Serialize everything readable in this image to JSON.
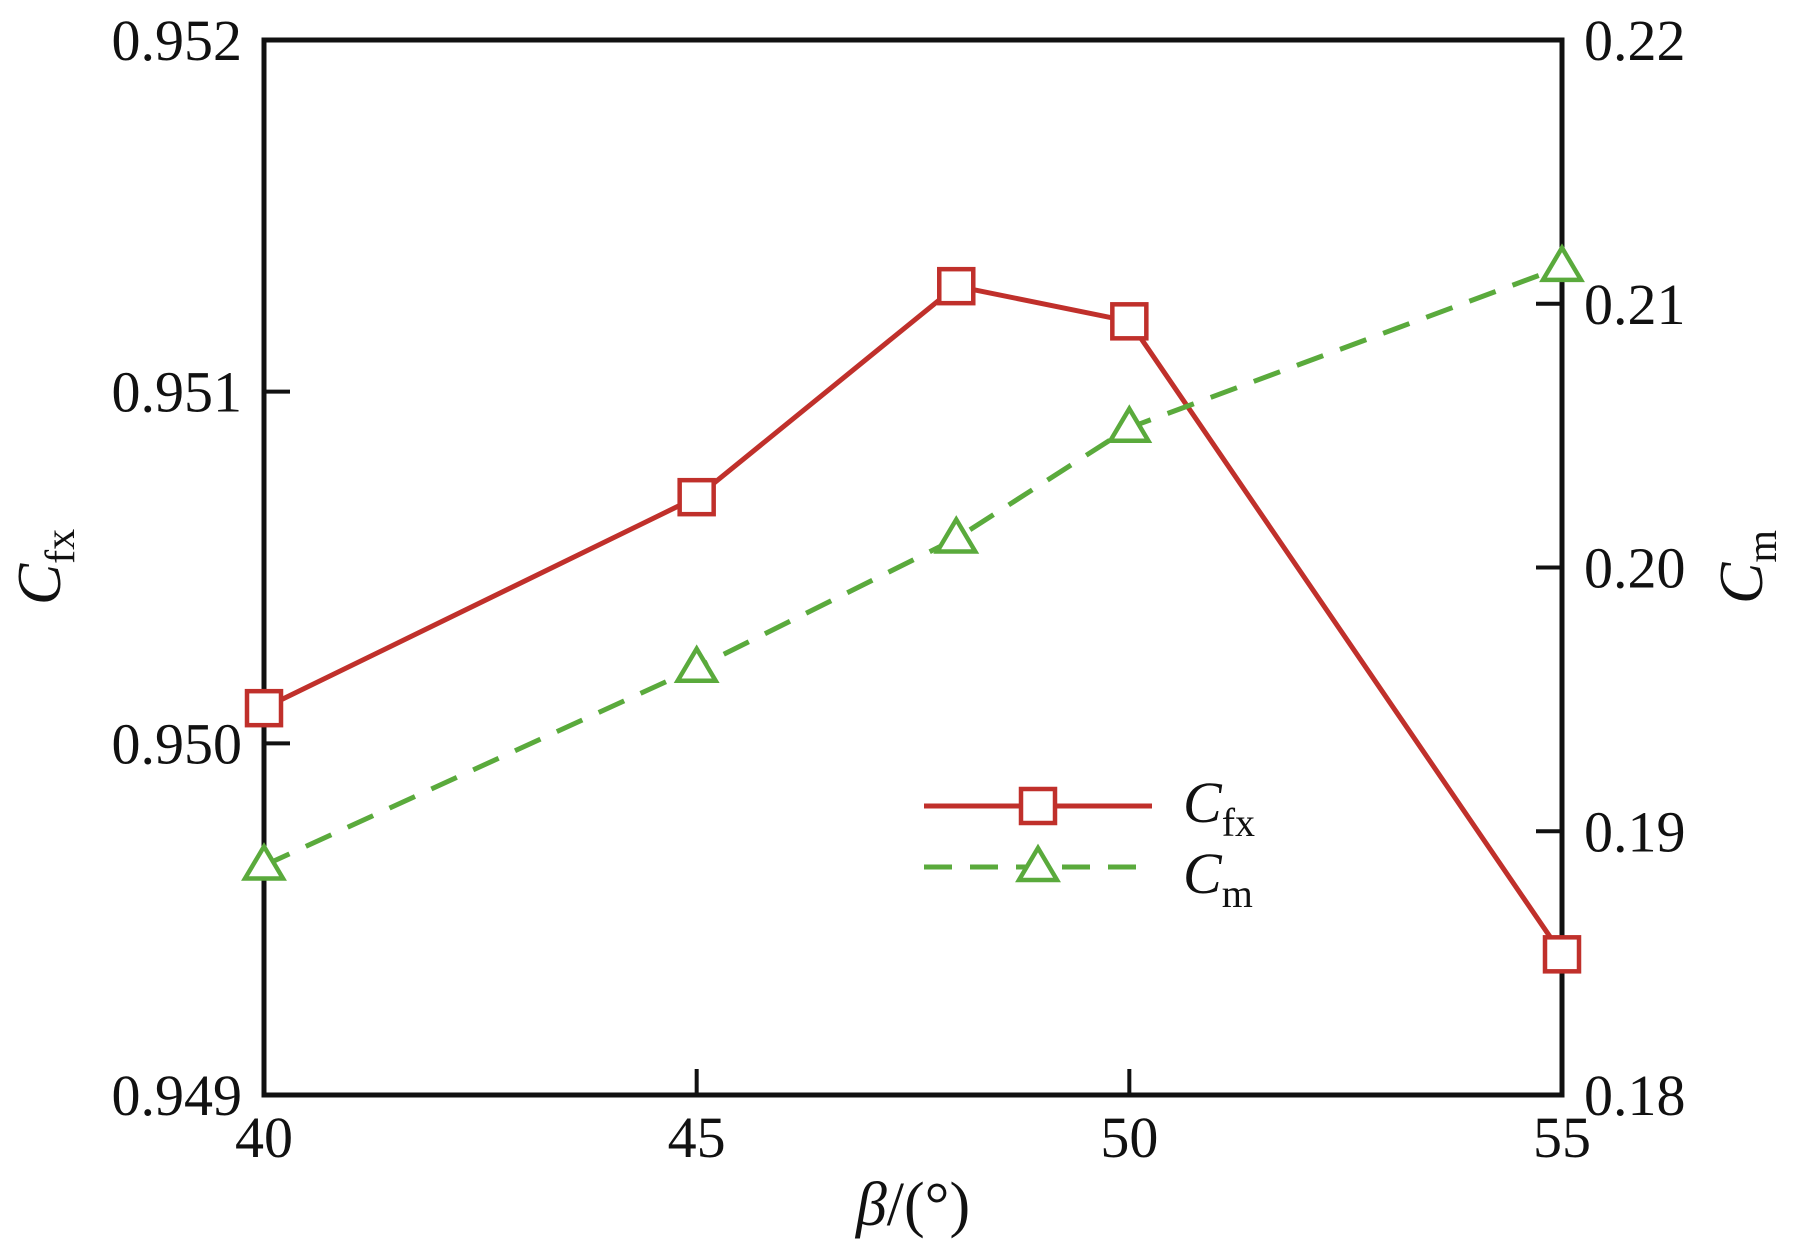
{
  "chart_data": {
    "type": "line",
    "x": [
      40,
      45,
      48,
      50,
      55
    ],
    "xlabel": "β/(°)",
    "xlabel_parts": {
      "symbol": "β",
      "unit": "/(°)"
    },
    "xlim": [
      40,
      55
    ],
    "xticks": [
      "40",
      "45",
      "50",
      "55"
    ],
    "y_left": {
      "label_main": "C",
      "label_sub": "fx",
      "ylim": [
        0.949,
        0.952
      ],
      "ticks": [
        "0.949",
        "0.950",
        "0.951",
        "0.952"
      ]
    },
    "y_right": {
      "label_main": "C",
      "label_sub": "m",
      "ylim": [
        0.18,
        0.22
      ],
      "ticks": [
        "0.18",
        "0.19",
        "0.20",
        "0.21",
        "0.22"
      ]
    },
    "series": [
      {
        "name_main": "C",
        "name_sub": "fx",
        "axis": "left",
        "marker": "square",
        "line": "solid",
        "color": "#c0302b",
        "values": [
          0.9501,
          0.9507,
          0.9513,
          0.9512,
          0.9494
        ]
      },
      {
        "name_main": "C",
        "name_sub": "m",
        "axis": "right",
        "marker": "triangle",
        "line": "dashed",
        "color": "#5aaa3c",
        "values": [
          0.1887,
          0.1962,
          0.2011,
          0.2053,
          0.2114
        ]
      }
    ],
    "grid": false,
    "legend_position": "lower-middle"
  }
}
